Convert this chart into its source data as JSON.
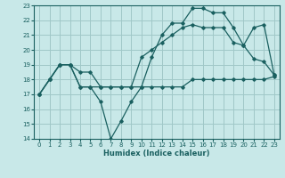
{
  "xlabel": "Humidex (Indice chaleur)",
  "bg_color": "#c8e8e8",
  "grid_color": "#a0c8c8",
  "line_color": "#1a6060",
  "xlim": [
    -0.5,
    23.5
  ],
  "ylim": [
    14,
    23
  ],
  "xticks": [
    0,
    1,
    2,
    3,
    4,
    5,
    6,
    7,
    8,
    9,
    10,
    11,
    12,
    13,
    14,
    15,
    16,
    17,
    18,
    19,
    20,
    21,
    22,
    23
  ],
  "yticks": [
    14,
    15,
    16,
    17,
    18,
    19,
    20,
    21,
    22,
    23
  ],
  "line_flat_x": [
    0,
    1,
    2,
    3,
    4,
    5,
    6,
    7,
    8,
    9,
    10,
    11,
    12,
    13,
    14,
    15,
    16,
    17,
    18,
    19,
    20,
    21,
    22,
    23
  ],
  "line_flat_y": [
    17,
    18,
    19,
    19,
    17.5,
    17.5,
    17.5,
    17.5,
    17.5,
    17.5,
    17.5,
    17.5,
    17.5,
    17.5,
    17.5,
    18,
    18,
    18,
    18,
    18,
    18,
    18,
    18,
    18.2
  ],
  "line_volatile_x": [
    0,
    1,
    2,
    3,
    4,
    5,
    6,
    7,
    8,
    9,
    10,
    11,
    12,
    13,
    14,
    15,
    16,
    17,
    18,
    19,
    20,
    21,
    22,
    23
  ],
  "line_volatile_y": [
    17,
    18,
    19,
    19,
    17.5,
    17.5,
    16.5,
    14,
    15.2,
    16.5,
    17.5,
    19.5,
    21,
    21.8,
    21.8,
    22.8,
    22.8,
    22.5,
    22.5,
    21.5,
    20.3,
    19.4,
    19.2,
    18.3
  ],
  "line_upper_x": [
    0,
    1,
    2,
    3,
    4,
    5,
    6,
    7,
    8,
    9,
    10,
    11,
    12,
    13,
    14,
    15,
    16,
    17,
    18,
    19,
    20,
    21,
    22,
    23
  ],
  "line_upper_y": [
    17,
    18,
    19,
    19,
    18.5,
    18.5,
    17.5,
    17.5,
    17.5,
    17.5,
    19.5,
    20,
    20.5,
    21,
    21.5,
    21.7,
    21.5,
    21.5,
    21.5,
    20.5,
    20.3,
    21.5,
    21.7,
    18.3
  ]
}
